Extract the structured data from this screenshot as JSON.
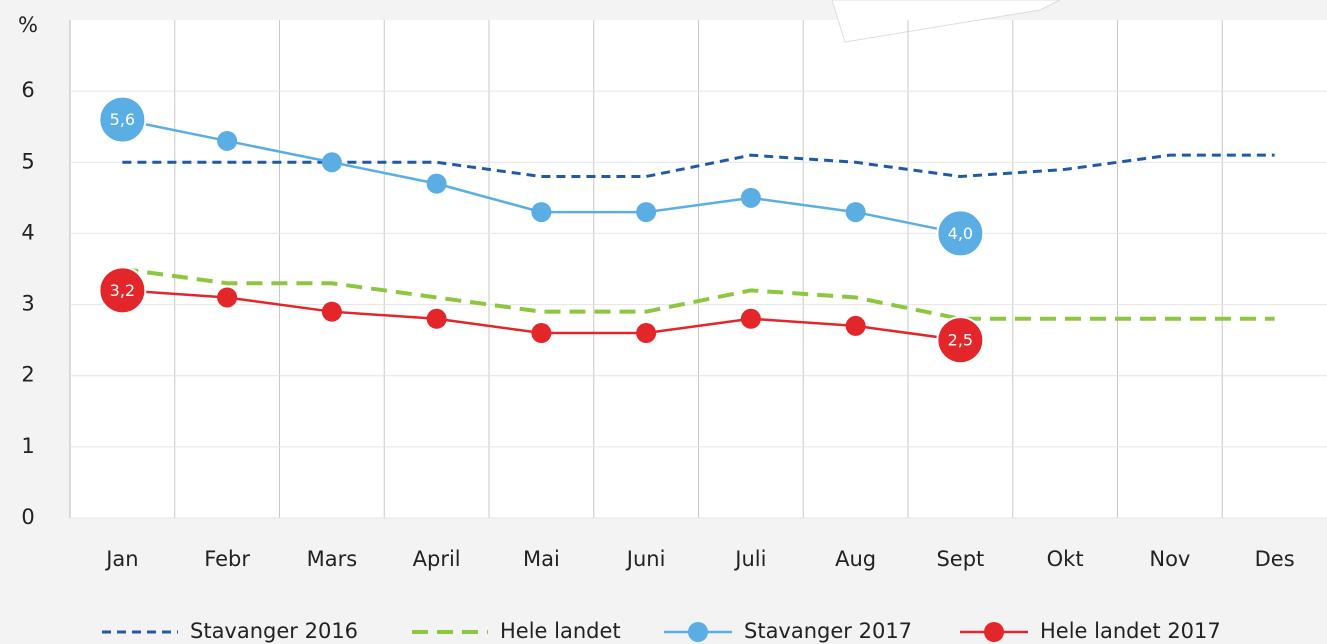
{
  "chart_data": {
    "type": "line",
    "y_label": "%",
    "categories": [
      "Jan",
      "Febr",
      "Mars",
      "April",
      "Mai",
      "Juni",
      "Juli",
      "Aug",
      "Sept",
      "Okt",
      "Nov",
      "Des"
    ],
    "ylim": [
      0,
      7
    ],
    "yticks": [
      0,
      1,
      2,
      3,
      4,
      5,
      6
    ],
    "grid": true,
    "series": [
      {
        "name": "Stavanger 2016",
        "color": "#1f5aa6",
        "line_style": "dashed",
        "marker": false,
        "values": [
          5.0,
          5.0,
          5.0,
          5.0,
          4.8,
          4.8,
          5.1,
          5.0,
          4.8,
          4.9,
          5.1,
          5.1
        ]
      },
      {
        "name": "Hele landet",
        "color": "#8dc63f",
        "line_style": "dashed",
        "marker": false,
        "values": [
          3.5,
          3.3,
          3.3,
          3.1,
          2.9,
          2.9,
          3.2,
          3.1,
          2.8,
          2.8,
          2.8,
          2.8
        ]
      },
      {
        "name": "Stavanger 2017",
        "color": "#5aaee3",
        "line_style": "solid",
        "marker": true,
        "values": [
          5.6,
          5.3,
          5.0,
          4.7,
          4.3,
          4.3,
          4.5,
          4.3,
          4.0,
          null,
          null,
          null
        ],
        "value_labels": [
          "5,6",
          null,
          null,
          null,
          null,
          null,
          null,
          null,
          "4,0",
          null,
          null,
          null
        ]
      },
      {
        "name": "Hele landet 2017",
        "color": "#e3262a",
        "line_style": "solid",
        "marker": true,
        "values": [
          3.2,
          3.1,
          2.9,
          2.8,
          2.6,
          2.6,
          2.8,
          2.7,
          2.5,
          null,
          null,
          null
        ],
        "value_labels": [
          "3,2",
          null,
          null,
          null,
          null,
          null,
          null,
          null,
          "2,5",
          null,
          null,
          null
        ]
      }
    ]
  }
}
